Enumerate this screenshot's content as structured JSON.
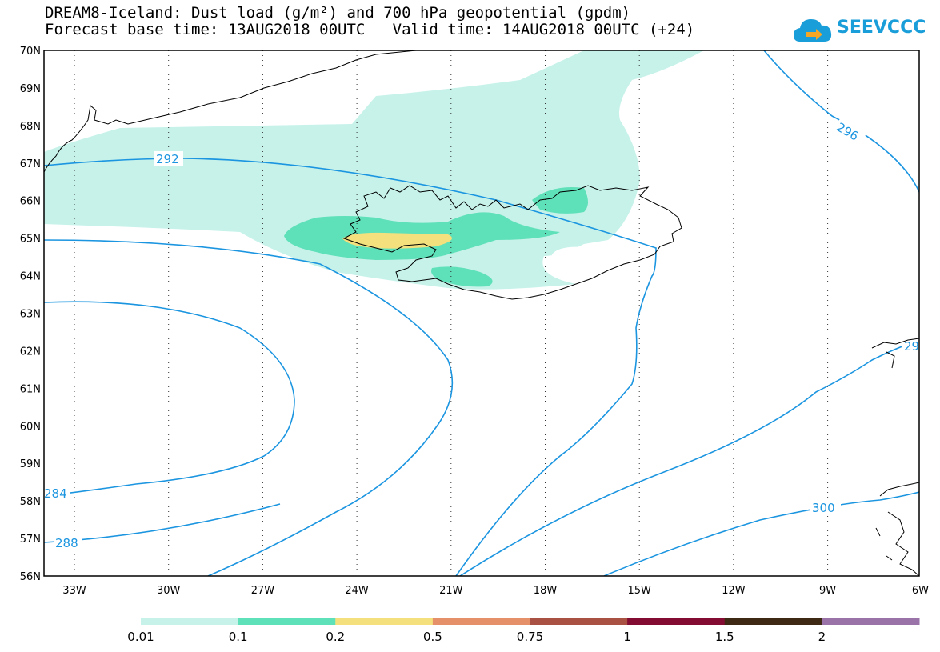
{
  "title": {
    "line1": "DREAM8-Iceland: Dust load (g/m²) and 700 hPa geopotential (gpdm)",
    "line2": "Forecast base time: 13AUG2018 00UTC   Valid time: 14AUG2018 00UTC (+24)"
  },
  "logo": {
    "text": "SEEVCCC",
    "icon": "cloud-logo-icon",
    "color": "#1a9ed9"
  },
  "map": {
    "lat_labels": [
      "70N",
      "69N",
      "68N",
      "67N",
      "66N",
      "65N",
      "64N",
      "63N",
      "62N",
      "61N",
      "60N",
      "59N",
      "58N",
      "57N",
      "56N"
    ],
    "lon_labels": [
      "33W",
      "30W",
      "27W",
      "24W",
      "21W",
      "18W",
      "15W",
      "12W",
      "9W",
      "6W"
    ],
    "contour_labels": [
      "292",
      "296",
      "284",
      "288",
      "300",
      "29"
    ],
    "contour_color": "#1b95e0"
  },
  "colorbar": {
    "labels": [
      "0.01",
      "0.1",
      "0.2",
      "0.5",
      "0.75",
      "1",
      "1.5",
      "2"
    ],
    "colors": [
      "#c6f2ea",
      "#5ee0b8",
      "#f4e17d",
      "#e6906a",
      "#a95244",
      "#820c32",
      "#3e2a14",
      "#9a73a8"
    ]
  }
}
